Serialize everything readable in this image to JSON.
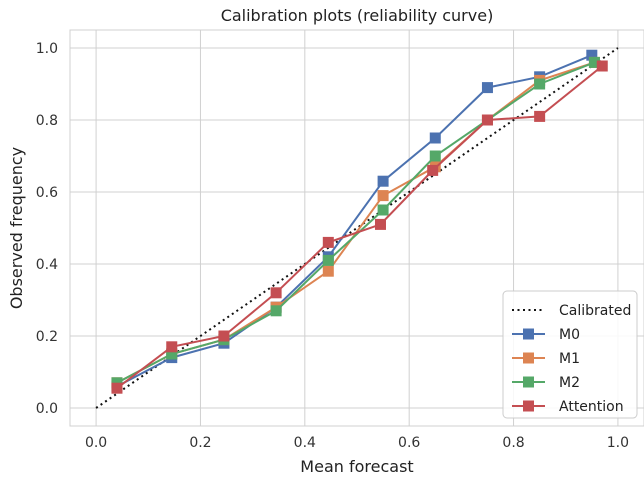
{
  "chart_data": {
    "type": "line",
    "title": "Calibration plots  (reliability curve)",
    "xlabel": "Mean forecast",
    "ylabel": "Observed frequency",
    "xlim": [
      -0.05,
      1.05
    ],
    "ylim": [
      -0.05,
      1.05
    ],
    "xticks": [
      0.0,
      0.2,
      0.4,
      0.6,
      0.8,
      1.0
    ],
    "yticks": [
      0.0,
      0.2,
      0.4,
      0.6,
      0.8,
      1.0
    ],
    "xtick_labels": [
      "0.0",
      "0.2",
      "0.4",
      "0.6",
      "0.8",
      "1.0"
    ],
    "ytick_labels": [
      "0.0",
      "0.2",
      "0.4",
      "0.6",
      "0.8",
      "1.0"
    ],
    "grid": true,
    "legend_position": "bottom-right",
    "reference": {
      "name": "Calibrated",
      "x": [
        0,
        1
      ],
      "y": [
        0,
        1
      ],
      "color": "#111111",
      "style": "dotted"
    },
    "series": [
      {
        "name": "M0",
        "color": "#4c72b0",
        "x": [
          0.04,
          0.145,
          0.245,
          0.345,
          0.445,
          0.55,
          0.65,
          0.75,
          0.85,
          0.95
        ],
        "y": [
          0.06,
          0.14,
          0.18,
          0.28,
          0.42,
          0.63,
          0.75,
          0.89,
          0.92,
          0.98
        ]
      },
      {
        "name": "M1",
        "color": "#dd8452",
        "x": [
          0.04,
          0.145,
          0.245,
          0.345,
          0.445,
          0.55,
          0.65,
          0.75,
          0.85,
          0.955
        ],
        "y": [
          0.07,
          0.15,
          0.19,
          0.28,
          0.38,
          0.59,
          0.67,
          0.8,
          0.91,
          0.96
        ]
      },
      {
        "name": "M2",
        "color": "#55a868",
        "x": [
          0.04,
          0.145,
          0.245,
          0.345,
          0.445,
          0.55,
          0.65,
          0.75,
          0.85,
          0.955
        ],
        "y": [
          0.07,
          0.15,
          0.19,
          0.27,
          0.41,
          0.55,
          0.7,
          0.8,
          0.9,
          0.96
        ]
      },
      {
        "name": "Attention",
        "color": "#c44e52",
        "x": [
          0.04,
          0.145,
          0.245,
          0.345,
          0.445,
          0.545,
          0.645,
          0.75,
          0.85,
          0.97
        ],
        "y": [
          0.055,
          0.17,
          0.2,
          0.32,
          0.46,
          0.51,
          0.66,
          0.8,
          0.81,
          0.95
        ]
      }
    ]
  }
}
